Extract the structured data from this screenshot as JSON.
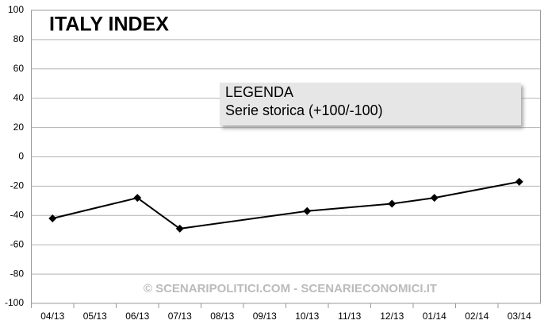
{
  "chart_data": {
    "type": "line",
    "title": "ITALY INDEX",
    "categories": [
      "04/13",
      "05/13",
      "06/13",
      "07/13",
      "08/13",
      "09/13",
      "10/13",
      "11/13",
      "12/13",
      "01/14",
      "02/14",
      "03/14"
    ],
    "series": [
      {
        "name": "Serie storica (+100/-100)",
        "color": "#000000",
        "x": [
          "04/13",
          "06/13",
          "07/13",
          "10/13",
          "12/13",
          "01/14",
          "03/14"
        ],
        "values": [
          -42,
          -28,
          -49,
          -37,
          -32,
          -28,
          -17
        ]
      }
    ],
    "legend_title": "LEGENDA",
    "annotation": "© SCENARIPOLITICI.COM - SCENARIECONOMICI.IT",
    "ylim": [
      -100,
      100
    ],
    "yticks": [
      -100,
      -80,
      -60,
      -40,
      -20,
      0,
      20,
      40,
      60,
      80,
      100
    ],
    "grid": true
  }
}
